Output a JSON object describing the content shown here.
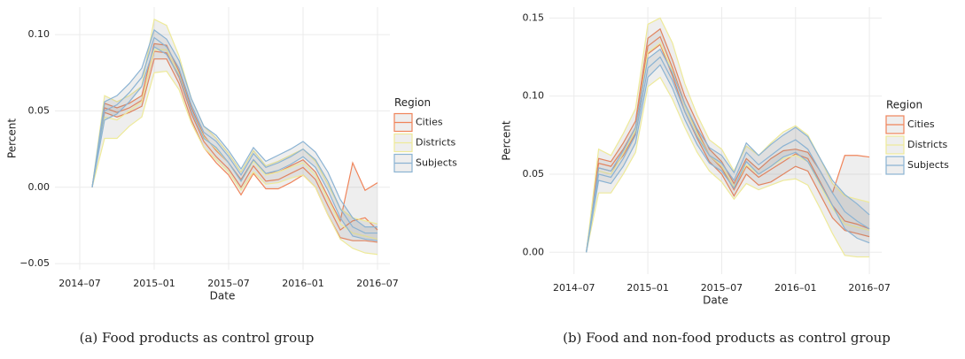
{
  "chart_data": [
    {
      "type": "ribbon",
      "caption": "(a)  Food products as control group",
      "x_label": "Date",
      "y_label": "Percent",
      "legend_title": "Region",
      "grid": true,
      "x": [
        "2014-08",
        "2014-09",
        "2014-10",
        "2014-11",
        "2014-12",
        "2015-01",
        "2015-02",
        "2015-03",
        "2015-04",
        "2015-05",
        "2015-06",
        "2015-07",
        "2015-08",
        "2015-09",
        "2015-10",
        "2015-11",
        "2015-12",
        "2016-01",
        "2016-02",
        "2016-03",
        "2016-04",
        "2016-05",
        "2016-06",
        "2016-07"
      ],
      "xlim": [
        "2014-05",
        "2016-08"
      ],
      "xticks": [
        {
          "value": "2014-07",
          "label": "2014–07"
        },
        {
          "value": "2015-01",
          "label": "2015–01"
        },
        {
          "value": "2015-07",
          "label": "2015–07"
        },
        {
          "value": "2016-01",
          "label": "2016–01"
        },
        {
          "value": "2016-07",
          "label": "2016–07"
        }
      ],
      "ylim": [
        -0.054,
        0.118
      ],
      "yticks": [
        {
          "value": -0.05,
          "label": "−0.05"
        },
        {
          "value": 0,
          "label": "0.00"
        },
        0.05,
        {
          "value": 0.1,
          "label": "0.10"
        }
      ],
      "series": [
        {
          "name": "Cities",
          "color": "#f0845a",
          "values": [
            0,
            0.052,
            0.049,
            0.052,
            0.057,
            0.089,
            0.088,
            0.072,
            0.048,
            0.03,
            0.02,
            0.012,
            0.0,
            0.014,
            0.004,
            0.005,
            0.009,
            0.013,
            0.005,
            -0.012,
            -0.028,
            -0.022,
            -0.02,
            -0.028
          ],
          "lower": [
            0,
            0.049,
            0.046,
            0.049,
            0.053,
            0.084,
            0.084,
            0.068,
            0.044,
            0.026,
            0.016,
            0.008,
            -0.005,
            0.009,
            -0.001,
            -0.001,
            0.003,
            0.008,
            0.0,
            -0.018,
            -0.033,
            -0.035,
            -0.035,
            -0.036
          ],
          "upper": [
            0,
            0.055,
            0.052,
            0.055,
            0.06,
            0.094,
            0.093,
            0.076,
            0.052,
            0.034,
            0.024,
            0.016,
            0.005,
            0.018,
            0.009,
            0.01,
            0.014,
            0.018,
            0.01,
            -0.006,
            -0.022,
            0.016,
            -0.002,
            0.003
          ]
        },
        {
          "name": "Districts",
          "color": "#eeea9a",
          "values": [
            0,
            0.046,
            0.044,
            0.05,
            0.056,
            0.09,
            0.09,
            0.074,
            0.05,
            0.033,
            0.025,
            0.016,
            0.004,
            0.017,
            0.008,
            0.01,
            0.013,
            0.016,
            0.008,
            -0.008,
            -0.024,
            -0.03,
            -0.032,
            -0.034
          ],
          "lower": [
            0,
            0.032,
            0.032,
            0.04,
            0.046,
            0.075,
            0.076,
            0.064,
            0.042,
            0.026,
            0.018,
            0.01,
            -0.002,
            0.01,
            0.002,
            0.003,
            0.006,
            0.008,
            0.0,
            -0.018,
            -0.034,
            -0.04,
            -0.043,
            -0.044
          ],
          "upper": [
            0,
            0.06,
            0.056,
            0.06,
            0.066,
            0.11,
            0.106,
            0.086,
            0.058,
            0.04,
            0.032,
            0.022,
            0.01,
            0.024,
            0.014,
            0.017,
            0.021,
            0.025,
            0.017,
            0.002,
            -0.014,
            -0.02,
            -0.022,
            -0.024
          ]
        },
        {
          "name": "Subjects",
          "color": "#8bb3d3",
          "values": [
            0,
            0.05,
            0.054,
            0.062,
            0.072,
            0.098,
            0.092,
            0.078,
            0.054,
            0.036,
            0.03,
            0.02,
            0.008,
            0.022,
            0.013,
            0.016,
            0.02,
            0.025,
            0.018,
            0.004,
            -0.014,
            -0.026,
            -0.03,
            -0.03
          ],
          "lower": [
            0,
            0.044,
            0.048,
            0.056,
            0.066,
            0.092,
            0.087,
            0.073,
            0.05,
            0.032,
            0.026,
            0.016,
            0.004,
            0.018,
            0.009,
            0.011,
            0.015,
            0.02,
            0.013,
            -0.002,
            -0.02,
            -0.032,
            -0.034,
            -0.035
          ],
          "upper": [
            0,
            0.056,
            0.06,
            0.068,
            0.078,
            0.103,
            0.097,
            0.083,
            0.058,
            0.04,
            0.034,
            0.024,
            0.012,
            0.026,
            0.017,
            0.021,
            0.025,
            0.03,
            0.023,
            0.01,
            -0.008,
            -0.02,
            -0.026,
            -0.026
          ]
        }
      ]
    },
    {
      "type": "ribbon",
      "caption": "(b)  Food and non-food products as control group",
      "x_label": "Date",
      "y_label": "Percent",
      "legend_title": "Region",
      "grid": true,
      "x": [
        "2014-08",
        "2014-09",
        "2014-10",
        "2014-11",
        "2014-12",
        "2015-01",
        "2015-02",
        "2015-03",
        "2015-04",
        "2015-05",
        "2015-06",
        "2015-07",
        "2015-08",
        "2015-09",
        "2015-10",
        "2015-11",
        "2015-12",
        "2016-01",
        "2016-02",
        "2016-03",
        "2016-04",
        "2016-05",
        "2016-06",
        "2016-07"
      ],
      "xlim": [
        "2014-05",
        "2016-08"
      ],
      "xticks": [
        {
          "value": "2014-07",
          "label": "2014–07"
        },
        {
          "value": "2015-01",
          "label": "2015–01"
        },
        {
          "value": "2015-07",
          "label": "2015–07"
        },
        {
          "value": "2016-01",
          "label": "2016–01"
        },
        {
          "value": "2016-07",
          "label": "2016–07"
        }
      ],
      "ylim": [
        -0.014,
        0.157
      ],
      "yticks": [
        {
          "value": 0,
          "label": "0.00"
        },
        0.05,
        {
          "value": 0.1,
          "label": "0.10"
        },
        0.15
      ],
      "series": [
        {
          "name": "Cities",
          "color": "#f0845a",
          "values": [
            0,
            0.057,
            0.055,
            0.066,
            0.08,
            0.132,
            0.138,
            0.118,
            0.095,
            0.078,
            0.062,
            0.054,
            0.04,
            0.055,
            0.048,
            0.053,
            0.058,
            0.063,
            0.06,
            0.045,
            0.03,
            0.02,
            0.018,
            0.015
          ],
          "lower": [
            0,
            0.054,
            0.052,
            0.062,
            0.076,
            0.127,
            0.133,
            0.113,
            0.09,
            0.073,
            0.058,
            0.05,
            0.036,
            0.05,
            0.043,
            0.045,
            0.05,
            0.055,
            0.052,
            0.037,
            0.022,
            0.014,
            0.012,
            0.01
          ],
          "upper": [
            0,
            0.06,
            0.058,
            0.07,
            0.084,
            0.137,
            0.143,
            0.123,
            0.1,
            0.083,
            0.066,
            0.058,
            0.044,
            0.06,
            0.053,
            0.06,
            0.065,
            0.066,
            0.064,
            0.052,
            0.038,
            0.062,
            0.062,
            0.061
          ]
        },
        {
          "name": "Districts",
          "color": "#eeea9a",
          "values": [
            0,
            0.052,
            0.05,
            0.063,
            0.078,
            0.128,
            0.134,
            0.116,
            0.094,
            0.076,
            0.062,
            0.055,
            0.042,
            0.056,
            0.05,
            0.055,
            0.06,
            0.062,
            0.058,
            0.043,
            0.028,
            0.018,
            0.016,
            0.014
          ],
          "lower": [
            0,
            0.038,
            0.038,
            0.05,
            0.064,
            0.106,
            0.112,
            0.098,
            0.08,
            0.064,
            0.052,
            0.045,
            0.034,
            0.044,
            0.04,
            0.043,
            0.046,
            0.047,
            0.043,
            0.028,
            0.012,
            -0.002,
            -0.003,
            -0.003
          ],
          "upper": [
            0,
            0.066,
            0.062,
            0.076,
            0.092,
            0.146,
            0.15,
            0.134,
            0.108,
            0.088,
            0.072,
            0.066,
            0.052,
            0.068,
            0.062,
            0.07,
            0.077,
            0.081,
            0.075,
            0.06,
            0.044,
            0.036,
            0.034,
            0.032
          ]
        },
        {
          "name": "Subjects",
          "color": "#8bb3d3",
          "values": [
            0,
            0.05,
            0.048,
            0.06,
            0.075,
            0.118,
            0.125,
            0.11,
            0.09,
            0.074,
            0.062,
            0.057,
            0.046,
            0.064,
            0.056,
            0.062,
            0.068,
            0.072,
            0.066,
            0.052,
            0.038,
            0.026,
            0.02,
            0.015
          ],
          "lower": [
            0,
            0.046,
            0.044,
            0.055,
            0.07,
            0.112,
            0.12,
            0.105,
            0.085,
            0.069,
            0.057,
            0.052,
            0.041,
            0.058,
            0.05,
            0.055,
            0.061,
            0.064,
            0.058,
            0.044,
            0.03,
            0.015,
            0.009,
            0.006
          ],
          "upper": [
            0,
            0.054,
            0.052,
            0.065,
            0.08,
            0.124,
            0.13,
            0.115,
            0.095,
            0.079,
            0.067,
            0.062,
            0.051,
            0.07,
            0.062,
            0.069,
            0.075,
            0.08,
            0.074,
            0.06,
            0.046,
            0.037,
            0.031,
            0.024
          ]
        }
      ]
    }
  ]
}
